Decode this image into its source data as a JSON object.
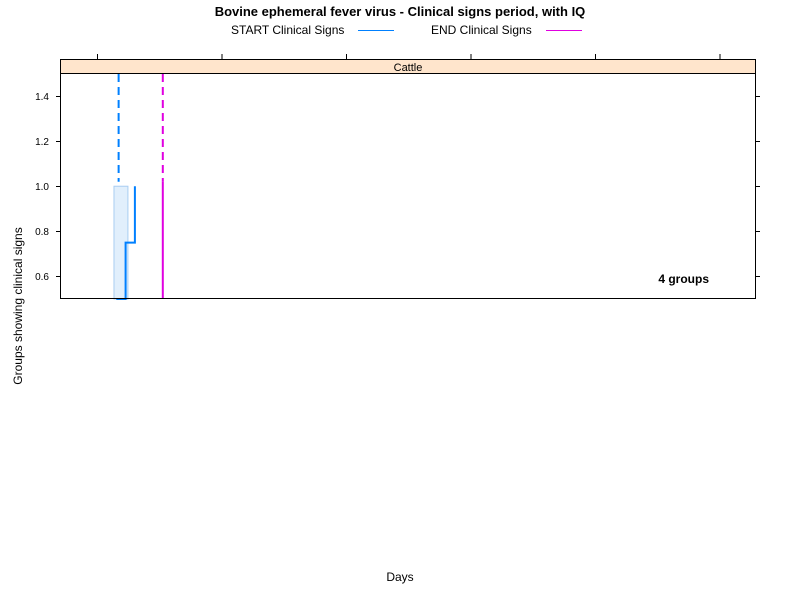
{
  "chart_data": {
    "type": "line",
    "title": "Bovine ephemeral fever virus - Clinical signs period, with IQ",
    "xlabel": "Days",
    "ylabel": "Groups showing clinical signs",
    "panel_label": "Cattle",
    "annotation": "4 groups",
    "ylim": [
      0.5,
      1.5
    ],
    "yticks": [
      0.6,
      0.8,
      1.0,
      1.2,
      1.4
    ],
    "ytick_labels": [
      "0.6",
      "0.8",
      "1.0",
      "1.2",
      "1.4"
    ],
    "x_tick_count": 6,
    "legend_position": "top",
    "series": [
      {
        "name": "START Clinical Signs",
        "color": "#0080ff",
        "step_x": [
          1,
          1,
          2,
          2,
          3,
          3
        ],
        "step_y": [
          0.5,
          0.5,
          0.5,
          0.75,
          0.75,
          1.0
        ],
        "iq_band": [
          0.75,
          2.25
        ],
        "median": 1.25
      },
      {
        "name": "END Clinical Signs",
        "color": "#e000e0",
        "step_x": [
          6,
          6
        ],
        "step_y": [
          0.5,
          1.02
        ],
        "median": 6
      }
    ]
  }
}
